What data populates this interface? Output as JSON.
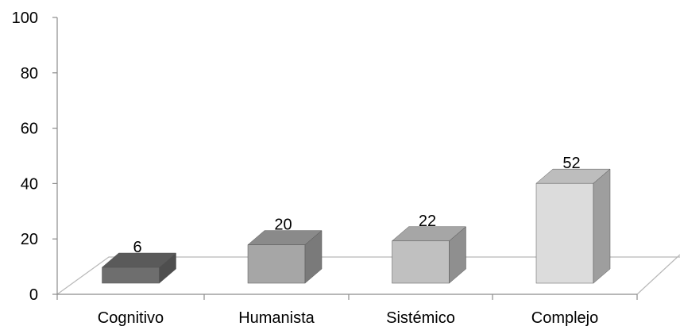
{
  "chart_data": {
    "type": "bar",
    "style": "3d-column",
    "categories": [
      "Cognitivo",
      "Humanista",
      "Sistémico",
      "Complejo"
    ],
    "values": [
      6,
      20,
      22,
      52
    ],
    "data_labels": [
      "6",
      "20",
      "22",
      "52"
    ],
    "ylim": [
      0,
      100
    ],
    "yticks": [
      "0",
      "20",
      "40",
      "60",
      "80",
      "100"
    ],
    "title": "",
    "xlabel": "",
    "ylabel": "",
    "grid": false,
    "legend": "none",
    "bar_colors": [
      {
        "front": "#6e6e6e",
        "top": "#5a5a5a",
        "side": "#4e4e4e"
      },
      {
        "front": "#a6a6a6",
        "top": "#8a8a8a",
        "side": "#7a7a7a"
      },
      {
        "front": "#c0c0c0",
        "top": "#a6a6a6",
        "side": "#8f8f8f"
      },
      {
        "front": "#dcdcdc",
        "top": "#bdbdbd",
        "side": "#9e9e9e"
      }
    ]
  }
}
